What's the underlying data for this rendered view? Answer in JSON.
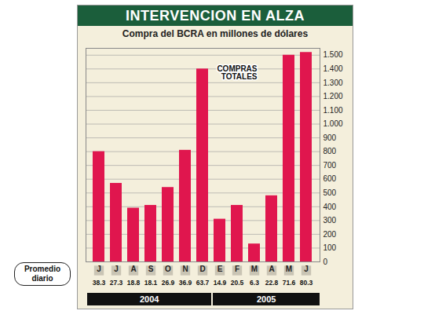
{
  "chart_data": {
    "type": "bar",
    "title": "INTERVENCION EN ALZA",
    "subtitle": "Compra del BCRA en millones de dólares",
    "categories": [
      "J",
      "J",
      "A",
      "S",
      "O",
      "N",
      "D",
      "E",
      "F",
      "M",
      "A",
      "M",
      "J"
    ],
    "values": [
      800,
      570,
      390,
      410,
      540,
      810,
      1400,
      310,
      410,
      130,
      480,
      1500,
      1520
    ],
    "color": "#e0164e",
    "ylim": [
      0,
      1550
    ],
    "yticks": [
      0,
      100,
      200,
      300,
      400,
      500,
      600,
      700,
      800,
      900,
      {
        "value": 1000,
        "label": "1.000"
      },
      {
        "value": 1100,
        "label": "1.100"
      },
      {
        "value": 1200,
        "label": "1.200"
      },
      {
        "value": 1300,
        "label": "1.300"
      },
      {
        "value": 1400,
        "label": "1.400"
      },
      {
        "value": 1500,
        "label": "1.500"
      }
    ],
    "grid": true,
    "years": [
      "2004",
      "2004",
      "2004",
      "2004",
      "2004",
      "2004",
      "2004",
      "2005",
      "2005",
      "2005",
      "2005",
      "2005",
      "2005"
    ],
    "daily_average": {
      "label": "Promedio diario",
      "values": [
        38.3,
        27.3,
        18.8,
        18.1,
        26.9,
        36.9,
        63.7,
        14.9,
        20.5,
        6.3,
        22.8,
        71.6,
        80.3
      ]
    },
    "annotations": [
      "COMPRAS TOTALES"
    ]
  }
}
